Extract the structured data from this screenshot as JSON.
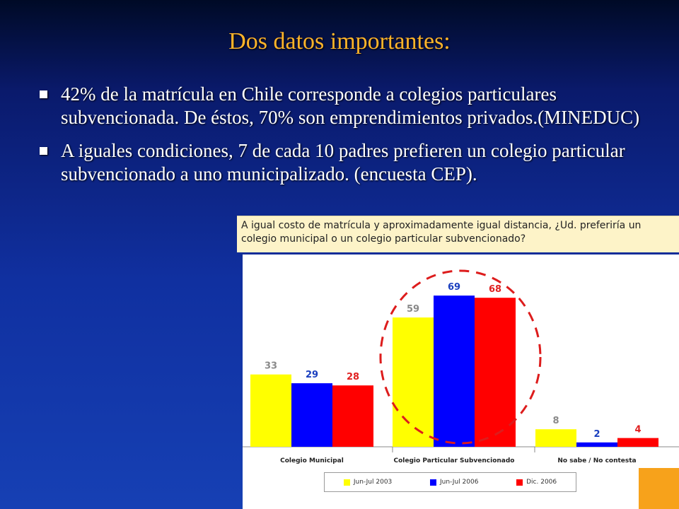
{
  "slide": {
    "title": "Dos datos importantes:",
    "bullets": [
      "42% de la matrícula en Chile corresponde a colegios particulares subvencionada. De éstos, 70% son emprendimientos privados.(MINEDUC)",
      "A iguales condiciones, 7 de cada 10 padres prefieren un colegio particular subvencionado a uno municipalizado. (encuesta CEP)."
    ]
  },
  "colors": {
    "title": "#ffb42a",
    "background": "#1030a0",
    "series_yellow": "#ffff00",
    "series_blue": "#0000ff",
    "series_red": "#ff0000",
    "circle": "#dd1c1c",
    "accent_orange": "#f7a21b"
  },
  "chart_data": {
    "type": "bar",
    "title": "A igual costo de matrícula y aproximadamente igual distancia, ¿Ud. preferiría un colegio municipal o un colegio particular subvencionado?",
    "categories": [
      "Colegio Municipal",
      "Colegio Particular Subvencionado",
      "No sabe / No contesta"
    ],
    "series": [
      {
        "name": "Jun-Jul 2003",
        "color": "#ffff00",
        "label_color": "#8a8a8a",
        "values": [
          33,
          59,
          8
        ]
      },
      {
        "name": "Jun-Jul 2006",
        "color": "#0000ff",
        "label_color": "#1a3fbf",
        "values": [
          29,
          69,
          2
        ]
      },
      {
        "name": "Dic. 2006",
        "color": "#ff0000",
        "label_color": "#e02020",
        "values": [
          28,
          68,
          4
        ]
      }
    ],
    "ylim": [
      0,
      80
    ],
    "grid": false,
    "legend": "bottom",
    "annotation": "dashed red circle around Colegio Particular Subvencionado"
  }
}
